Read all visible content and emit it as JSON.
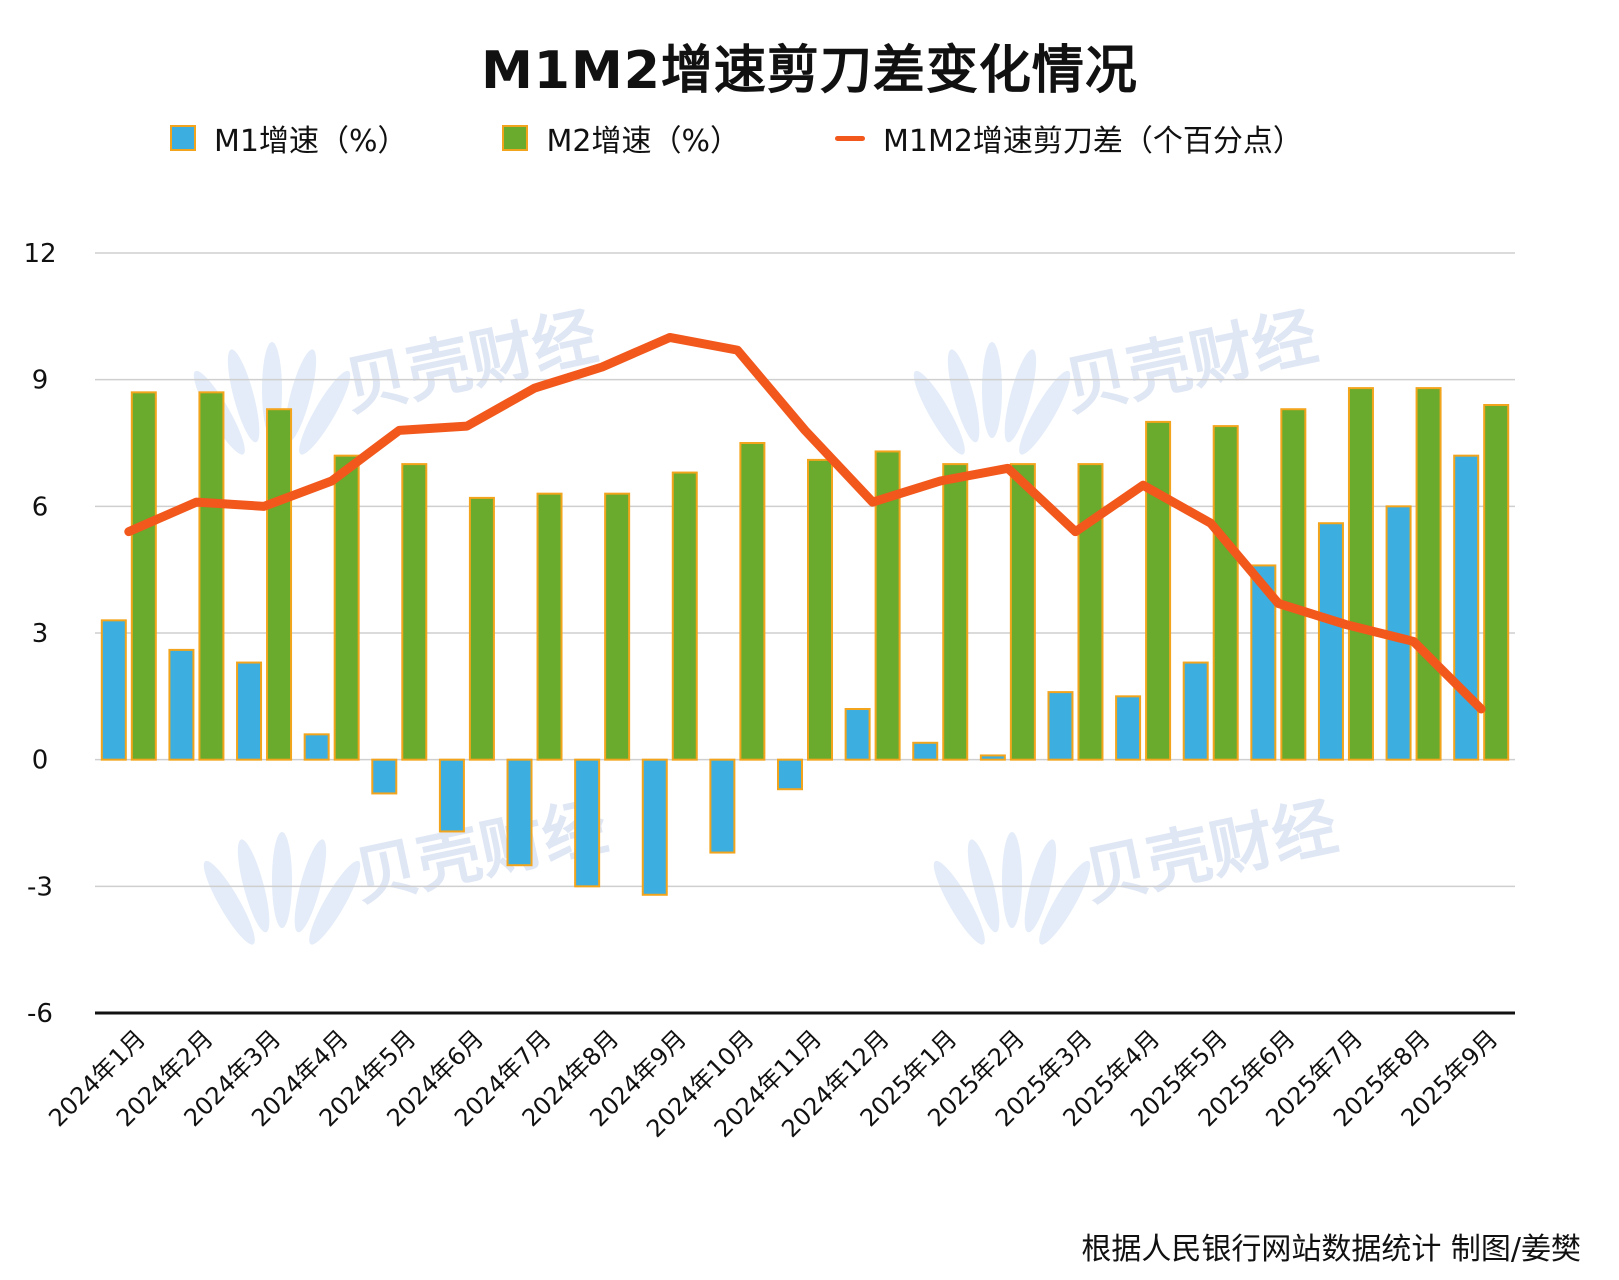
{
  "chart_data": {
    "type": "bar",
    "title": "M1M2增速剪刀差变化情况",
    "categories": [
      "2024年1月",
      "2024年2月",
      "2024年3月",
      "2024年4月",
      "2024年5月",
      "2024年6月",
      "2024年7月",
      "2024年8月",
      "2024年9月",
      "2024年10月",
      "2024年11月",
      "2024年12月",
      "2025年1月",
      "2025年2月",
      "2025年3月",
      "2025年4月",
      "2025年5月",
      "2025年6月",
      "2025年7月",
      "2025年8月",
      "2025年9月"
    ],
    "series": [
      {
        "name": "M1增速（%）",
        "type": "bar",
        "color": "#3daee0",
        "values": [
          3.3,
          2.6,
          2.3,
          0.6,
          -0.8,
          -1.7,
          -2.5,
          -3.0,
          -3.2,
          -2.2,
          -0.7,
          1.2,
          0.4,
          0.1,
          1.6,
          1.5,
          2.3,
          4.6,
          5.6,
          6.0,
          7.2
        ]
      },
      {
        "name": "M2增速（%）",
        "type": "bar",
        "color": "#6aaa2c",
        "values": [
          8.7,
          8.7,
          8.3,
          7.2,
          7.0,
          6.2,
          6.3,
          6.3,
          6.8,
          7.5,
          7.1,
          7.3,
          7.0,
          7.0,
          7.0,
          8.0,
          7.9,
          8.3,
          8.8,
          8.8,
          8.4
        ]
      },
      {
        "name": "M1M2增速剪刀差（个百分点）",
        "type": "line",
        "color": "#f2581c",
        "values": [
          5.4,
          6.1,
          6.0,
          6.6,
          7.8,
          7.9,
          8.8,
          9.3,
          10.0,
          9.7,
          7.8,
          6.1,
          6.6,
          6.9,
          5.4,
          6.5,
          5.6,
          3.7,
          3.2,
          2.8,
          1.2
        ]
      }
    ],
    "ylim": [
      -6,
      12
    ],
    "yticks": [
      12,
      9,
      6,
      3,
      0,
      -3,
      -6
    ],
    "grid": true,
    "legend_position": "top",
    "bar_border_color": "#f2a51c"
  },
  "watermark": "贝壳财经",
  "source_note": "根据人民银行网站数据统计 制图/姜樊"
}
